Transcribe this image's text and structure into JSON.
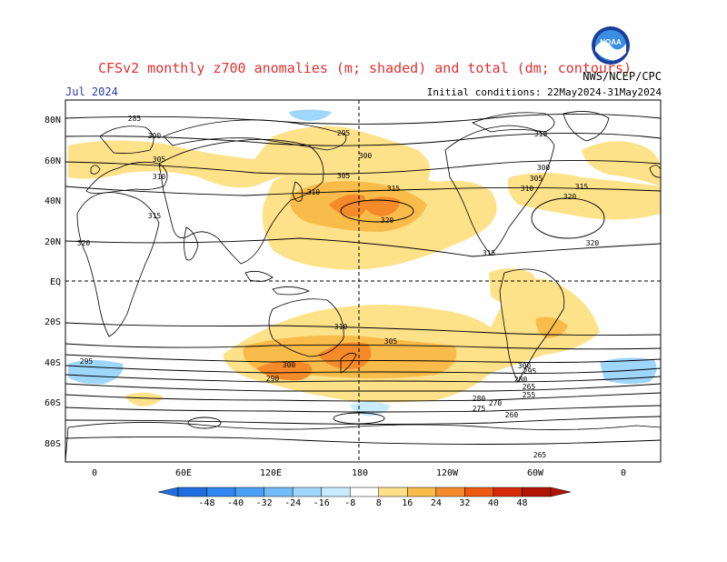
{
  "header": {
    "title": "CFSv2 monthly z700 anomalies (m; shaded) and total (dm; contours)",
    "month": "Jul 2024",
    "initial_conditions": "Initial conditions: 22May2024-31May2024",
    "agency": "NWS/NCEP/CPC",
    "logo_text": "NOAA"
  },
  "axes": {
    "lat_labels": [
      "80N",
      "60N",
      "40N",
      "20N",
      "EQ",
      "20S",
      "40S",
      "60S",
      "80S"
    ],
    "lon_labels": [
      "0",
      "60E",
      "120E",
      "180",
      "120W",
      "60W",
      "0"
    ]
  },
  "contours": {
    "labels": [
      "285",
      "300",
      "305",
      "310",
      "315",
      "320",
      "295",
      "300",
      "305",
      "310",
      "315",
      "320",
      "310",
      "300",
      "305",
      "310",
      "315",
      "320",
      "300",
      "295",
      "280",
      "265",
      "255",
      "260",
      "265",
      "270",
      "275",
      "280",
      "290",
      "295",
      "300",
      "305",
      "310",
      "315",
      "320"
    ]
  },
  "colorbar": {
    "labels": [
      "-48",
      "-40",
      "-32",
      "-24",
      "-16",
      "-8",
      "8",
      "16",
      "24",
      "32",
      "40",
      "48"
    ],
    "colors": [
      "#1e6ee0",
      "#2f86f0",
      "#4aa0f5",
      "#72bcf8",
      "#9fd6fb",
      "#c8ecfd",
      "#ffffff",
      "#fde28a",
      "#f9bb4a",
      "#f58a2a",
      "#ec5a14",
      "#d8280a",
      "#b01404"
    ]
  }
}
